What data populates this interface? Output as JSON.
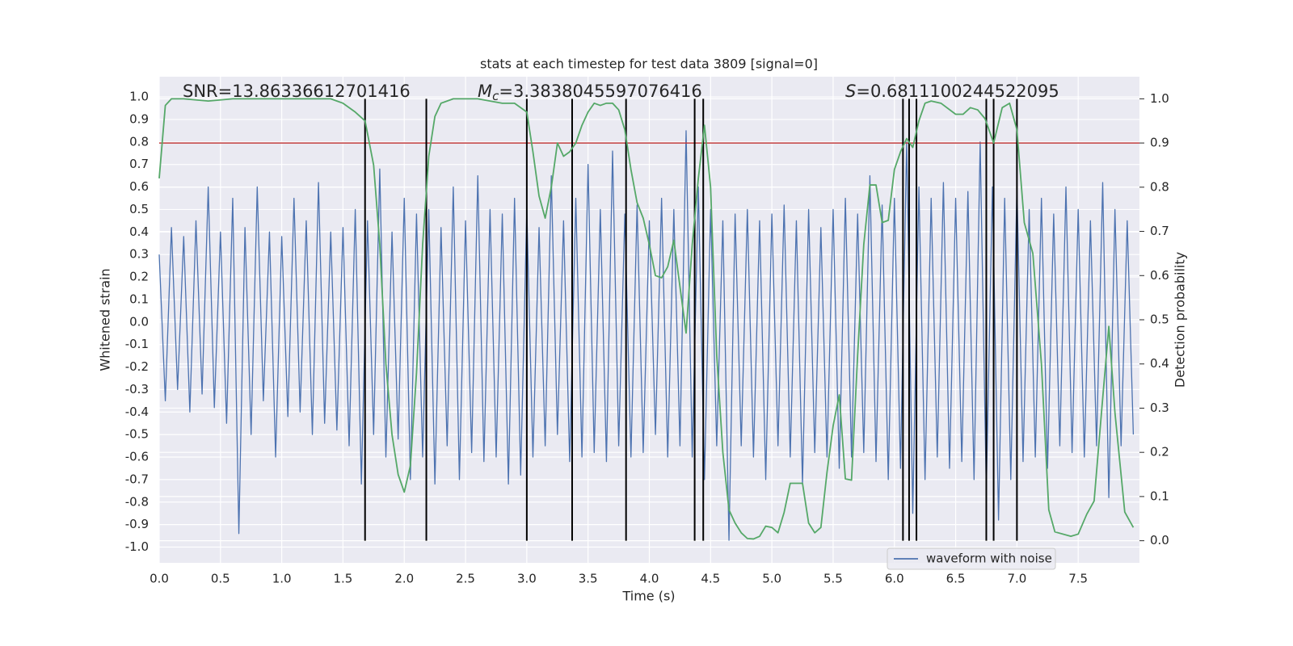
{
  "chart_data": {
    "type": "line",
    "title": "stats at each timestep for test data 3809 [signal=0]",
    "xlabel": "Time (s)",
    "ylabel": "Whitened strain",
    "y2label": "Detection probability",
    "annotations": [
      {
        "text": "SNR=13.86336612701416"
      },
      {
        "symbol": "M",
        "sub": "c",
        "text": "=3.3838045597076416"
      },
      {
        "symbol": "S",
        "text": "=0.6811100244522095"
      }
    ],
    "xlim": [
      0,
      8
    ],
    "ylim": [
      -1.07,
      1.09
    ],
    "y2lim": [
      -0.05,
      1.05
    ],
    "xticks": [
      {
        "value": 0,
        "label": "0.0"
      },
      0.5,
      {
        "value": 1,
        "label": "1.0"
      },
      1.5,
      {
        "value": 2,
        "label": "2.0"
      },
      2.5,
      {
        "value": 3,
        "label": "3.0"
      },
      3.5,
      {
        "value": 4,
        "label": "4.0"
      },
      4.5,
      {
        "value": 5,
        "label": "5.0"
      },
      5.5,
      {
        "value": 6,
        "label": "6.0"
      },
      6.5,
      {
        "value": 7,
        "label": "7.0"
      },
      7.5
    ],
    "yticks": [
      {
        "value": -1,
        "label": "-1.0"
      },
      -0.9,
      -0.8,
      -0.7,
      -0.6,
      -0.5,
      -0.4,
      -0.3,
      -0.2,
      -0.1,
      {
        "value": 0,
        "label": "0.0"
      },
      0.1,
      0.2,
      0.3,
      0.4,
      0.5,
      0.6,
      0.7,
      0.8,
      0.9,
      {
        "value": 1,
        "label": "1.0"
      }
    ],
    "y2ticks": [
      {
        "value": 0,
        "label": "0.0"
      },
      0.1,
      0.2,
      0.3,
      0.4,
      0.5,
      0.6,
      0.7,
      0.8,
      0.9,
      {
        "value": 1,
        "label": "1.0"
      }
    ],
    "grid": true,
    "legend_loc": "lower right",
    "series": [
      {
        "name": "waveform with noise",
        "color": "#4c72b0",
        "x": [
          0,
          0.05,
          0.1,
          0.15,
          0.2,
          0.25,
          0.3,
          0.35,
          0.4,
          0.45,
          0.5,
          0.55,
          0.6,
          0.65,
          0.7,
          0.75,
          0.8,
          0.85,
          0.9,
          0.95,
          1,
          1.05,
          1.1,
          1.15,
          1.2,
          1.25,
          1.3,
          1.35,
          1.4,
          1.45,
          1.5,
          1.55,
          1.6,
          1.65,
          1.7,
          1.75,
          1.8,
          1.85,
          1.9,
          1.95,
          2,
          2.05,
          2.1,
          2.15,
          2.2,
          2.25,
          2.3,
          2.35,
          2.4,
          2.45,
          2.5,
          2.55,
          2.6,
          2.65,
          2.7,
          2.75,
          2.8,
          2.85,
          2.9,
          2.95,
          3,
          3.05,
          3.1,
          3.15,
          3.2,
          3.25,
          3.3,
          3.35,
          3.4,
          3.45,
          3.5,
          3.55,
          3.6,
          3.65,
          3.7,
          3.75,
          3.8,
          3.85,
          3.9,
          3.95,
          4,
          4.05,
          4.1,
          4.15,
          4.2,
          4.25,
          4.3,
          4.35,
          4.4,
          4.45,
          4.5,
          4.55,
          4.6,
          4.65,
          4.7,
          4.75,
          4.8,
          4.85,
          4.9,
          4.95,
          5,
          5.05,
          5.1,
          5.15,
          5.2,
          5.25,
          5.3,
          5.35,
          5.4,
          5.45,
          5.5,
          5.55,
          5.6,
          5.65,
          5.7,
          5.75,
          5.8,
          5.85,
          5.9,
          5.95,
          6,
          6.05,
          6.1,
          6.15,
          6.2,
          6.25,
          6.3,
          6.35,
          6.4,
          6.45,
          6.5,
          6.55,
          6.6,
          6.65,
          6.7,
          6.75,
          6.8,
          6.85,
          6.9,
          6.95,
          7,
          7.05,
          7.1,
          7.15,
          7.2,
          7.25,
          7.3,
          7.35,
          7.4,
          7.45,
          7.5,
          7.55,
          7.6,
          7.65,
          7.7,
          7.75,
          7.8,
          7.85,
          7.9,
          7.95
        ],
        "values": [
          0.3,
          -0.35,
          0.42,
          -0.3,
          0.38,
          -0.4,
          0.45,
          -0.32,
          0.6,
          -0.38,
          0.4,
          -0.45,
          0.55,
          -0.94,
          0.42,
          -0.5,
          0.6,
          -0.35,
          0.4,
          -0.6,
          0.38,
          -0.42,
          0.55,
          -0.4,
          0.45,
          -0.5,
          0.62,
          -0.45,
          0.4,
          -0.48,
          0.42,
          -0.55,
          0.5,
          -0.72,
          0.45,
          -0.5,
          0.68,
          -0.6,
          0.4,
          -0.52,
          0.55,
          -0.7,
          0.48,
          -0.6,
          0.5,
          -0.72,
          0.42,
          -0.55,
          0.6,
          -0.7,
          0.45,
          -0.58,
          0.65,
          -0.62,
          0.5,
          -0.6,
          0.48,
          -0.72,
          0.55,
          -0.68,
          0.5,
          -0.6,
          0.42,
          -0.55,
          0.65,
          -0.5,
          0.45,
          -0.62,
          0.55,
          -0.6,
          0.7,
          -0.58,
          0.5,
          -0.62,
          0.76,
          -0.55,
          0.48,
          -0.6,
          0.52,
          -0.58,
          0.45,
          -0.5,
          0.55,
          -0.6,
          0.5,
          -0.55,
          0.85,
          -0.6,
          0.6,
          -0.7,
          0.5,
          -0.55,
          0.45,
          -0.97,
          0.48,
          -0.55,
          0.5,
          -0.6,
          0.45,
          -0.7,
          0.48,
          -0.55,
          0.52,
          -0.6,
          0.45,
          -0.72,
          0.5,
          -0.58,
          0.42,
          -0.6,
          0.5,
          -0.65,
          0.55,
          -0.6,
          0.48,
          -0.58,
          0.65,
          -0.62,
          0.52,
          -0.7,
          0.55,
          -0.65,
          0.8,
          -0.85,
          0.6,
          -0.7,
          0.55,
          -0.6,
          0.62,
          -0.65,
          0.55,
          -0.62,
          0.58,
          -0.7,
          0.8,
          -0.75,
          0.6,
          -0.88,
          0.55,
          -0.7,
          0.6,
          -0.62,
          0.5,
          -0.6,
          0.55,
          -0.65,
          0.48,
          -0.55,
          0.6,
          -0.58,
          0.5,
          -0.6,
          0.45,
          -0.55,
          0.62,
          -0.78,
          0.5,
          -0.55,
          0.45,
          -0.5
        ]
      },
      {
        "color": "#55a868",
        "axis": "y2",
        "x": [
          0,
          0.05,
          0.1,
          0.2,
          0.4,
          0.6,
          0.8,
          1,
          1.2,
          1.4,
          1.5,
          1.6,
          1.68,
          1.75,
          1.8,
          1.85,
          1.9,
          1.95,
          2,
          2.05,
          2.1,
          2.15,
          2.2,
          2.25,
          2.3,
          2.4,
          2.6,
          2.8,
          2.9,
          3,
          3.05,
          3.1,
          3.15,
          3.2,
          3.25,
          3.3,
          3.35,
          3.4,
          3.45,
          3.5,
          3.55,
          3.6,
          3.65,
          3.7,
          3.75,
          3.8,
          3.85,
          3.9,
          3.95,
          4,
          4.05,
          4.1,
          4.15,
          4.2,
          4.25,
          4.3,
          4.35,
          4.4,
          4.45,
          4.5,
          4.55,
          4.6,
          4.65,
          4.7,
          4.75,
          4.8,
          4.85,
          4.9,
          4.95,
          5,
          5.05,
          5.1,
          5.15,
          5.25,
          5.3,
          5.35,
          5.4,
          5.45,
          5.5,
          5.55,
          5.6,
          5.65,
          5.7,
          5.75,
          5.8,
          5.85,
          5.9,
          5.95,
          6,
          6.05,
          6.1,
          6.15,
          6.2,
          6.25,
          6.3,
          6.38,
          6.5,
          6.56,
          6.62,
          6.68,
          6.74,
          6.81,
          6.88,
          6.94,
          7,
          7.06,
          7.13,
          7.2,
          7.26,
          7.31,
          7.44,
          7.5,
          7.57,
          7.63,
          7.69,
          7.75,
          7.8,
          7.88,
          7.95
        ],
        "values": [
          0.82,
          0.985,
          1,
          1,
          0.995,
          1,
          1,
          1,
          1,
          1,
          0.99,
          0.97,
          0.95,
          0.85,
          0.67,
          0.4,
          0.24,
          0.15,
          0.11,
          0.17,
          0.38,
          0.67,
          0.87,
          0.96,
          0.99,
          1,
          1,
          0.99,
          0.99,
          0.97,
          0.88,
          0.78,
          0.73,
          0.8,
          0.9,
          0.87,
          0.88,
          0.9,
          0.94,
          0.97,
          0.99,
          0.985,
          0.99,
          0.99,
          0.975,
          0.93,
          0.84,
          0.765,
          0.73,
          0.67,
          0.6,
          0.595,
          0.62,
          0.68,
          0.575,
          0.47,
          0.67,
          0.82,
          0.94,
          0.8,
          0.42,
          0.2,
          0.07,
          0.04,
          0.018,
          0.005,
          0.004,
          0.01,
          0.033,
          0.03,
          0.018,
          0.064,
          0.13,
          0.13,
          0.04,
          0.018,
          0.03,
          0.155,
          0.26,
          0.33,
          0.14,
          0.137,
          0.42,
          0.67,
          0.805,
          0.805,
          0.72,
          0.725,
          0.84,
          0.88,
          0.91,
          0.89,
          0.95,
          0.99,
          0.995,
          0.99,
          0.965,
          0.965,
          0.98,
          0.975,
          0.955,
          0.9,
          0.98,
          0.99,
          0.93,
          0.72,
          0.65,
          0.4,
          0.07,
          0.02,
          0.01,
          0.015,
          0.06,
          0.09,
          0.29,
          0.485,
          0.29,
          0.065,
          0.03
        ]
      }
    ],
    "hline": {
      "axis": "y2",
      "value": 0.9,
      "color": "#c03d3e"
    },
    "vlines": {
      "color": "#000000",
      "x": [
        1.68,
        2.18,
        3.0,
        3.37,
        3.81,
        4.37,
        4.44,
        6.07,
        6.12,
        6.18,
        6.75,
        6.81,
        7.0
      ],
      "y2range": [
        0,
        1
      ]
    }
  }
}
